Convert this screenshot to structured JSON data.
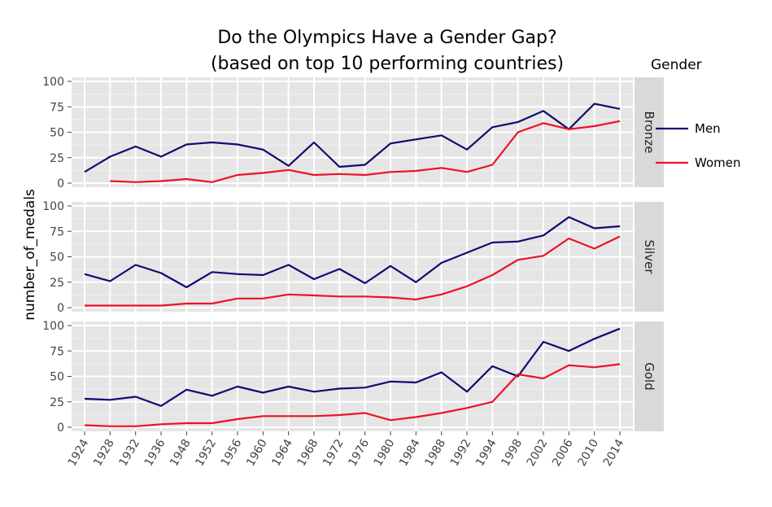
{
  "chart_data": {
    "type": "line",
    "title_lines": [
      "Do the Olympics Have a Gender Gap?",
      "(based on top 10 performing countries)"
    ],
    "ylabel": "number_of_medals",
    "xlabel": "",
    "ylim": [
      0,
      100
    ],
    "yticks": [
      "0",
      "25",
      "50",
      "75",
      "100"
    ],
    "grid": true,
    "categories": [
      "1924",
      "1928",
      "1932",
      "1936",
      "1948",
      "1952",
      "1956",
      "1960",
      "1964",
      "1968",
      "1972",
      "1976",
      "1980",
      "1984",
      "1988",
      "1992",
      "1994",
      "1998",
      "2002",
      "2006",
      "2010",
      "2014"
    ],
    "legend": {
      "title": "Gender",
      "position": "right",
      "entries": [
        {
          "name": "Men",
          "color": "#0d0d73"
        },
        {
          "name": "Women",
          "color": "#ee1126"
        }
      ]
    },
    "panels": [
      {
        "facet": "Bronze",
        "series": [
          {
            "name": "Men",
            "values": [
              11,
              26,
              36,
              26,
              38,
              40,
              38,
              33,
              17,
              40,
              16,
              18,
              39,
              43,
              47,
              33,
              55,
              60,
              71,
              53,
              78,
              73
            ]
          },
          {
            "name": "Women",
            "values": [
              null,
              2,
              1,
              2,
              4,
              1,
              8,
              10,
              13,
              8,
              9,
              8,
              11,
              12,
              15,
              11,
              18,
              50,
              59,
              53,
              56,
              61
            ]
          }
        ]
      },
      {
        "facet": "Silver",
        "series": [
          {
            "name": "Men",
            "values": [
              33,
              26,
              42,
              34,
              20,
              35,
              33,
              32,
              42,
              28,
              38,
              24,
              41,
              25,
              44,
              54,
              64,
              65,
              71,
              89,
              78,
              80
            ]
          },
          {
            "name": "Women",
            "values": [
              2,
              2,
              2,
              2,
              4,
              4,
              9,
              9,
              13,
              12,
              11,
              11,
              10,
              8,
              13,
              21,
              32,
              47,
              51,
              68,
              58,
              70
            ]
          }
        ]
      },
      {
        "facet": "Gold",
        "series": [
          {
            "name": "Men",
            "values": [
              28,
              27,
              30,
              21,
              37,
              31,
              40,
              34,
              40,
              35,
              38,
              39,
              45,
              44,
              54,
              35,
              60,
              50,
              84,
              75,
              87,
              97
            ]
          },
          {
            "name": "Women",
            "values": [
              2,
              1,
              1,
              3,
              4,
              4,
              8,
              11,
              11,
              11,
              12,
              14,
              7,
              10,
              14,
              19,
              25,
              52,
              48,
              61,
              59,
              62
            ]
          }
        ]
      }
    ]
  }
}
